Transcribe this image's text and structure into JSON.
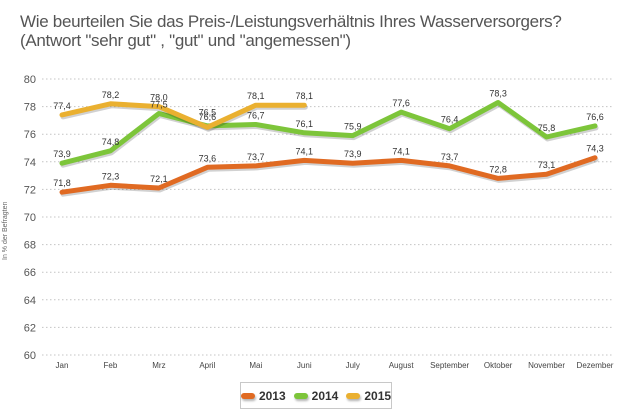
{
  "chart_data": {
    "type": "line",
    "title": "Wie beurteilen Sie das Preis-/Leistungsverhältnis Ihres Wasserversorgers?",
    "subtitle": "(Antwort \"sehr gut\" , \"gut\" und \"angemessen\")",
    "xlabel": "",
    "ylabel": "In % der Befragten",
    "ylim": [
      60,
      80
    ],
    "yticks": [
      60,
      62,
      64,
      66,
      68,
      70,
      72,
      74,
      76,
      78,
      80
    ],
    "grid": true,
    "legend_position": "bottom-center",
    "categories": [
      "Jan",
      "Feb",
      "Mrz",
      "April",
      "Mai",
      "Juni",
      "July",
      "August",
      "September",
      "Oktober",
      "November",
      "Dezember"
    ],
    "series": [
      {
        "name": "2013",
        "color": "#e06a22",
        "values": [
          71.8,
          72.3,
          72.1,
          73.6,
          73.7,
          74.1,
          73.9,
          74.1,
          73.7,
          72.8,
          73.1,
          74.3
        ],
        "labels": [
          "71,8",
          "72,3",
          "72,1",
          "73,6",
          "73,7",
          "74,1",
          "73,9",
          "74,1",
          "73,7",
          "72,8",
          "73,1",
          "74,3"
        ]
      },
      {
        "name": "2014",
        "color": "#7dc53a",
        "values": [
          73.9,
          74.8,
          77.5,
          76.6,
          76.7,
          76.1,
          75.9,
          77.6,
          76.4,
          78.3,
          75.8,
          76.6
        ],
        "labels": [
          "73,9",
          "74,8",
          "77,5",
          "76,6",
          "76,7",
          "76,1",
          "75,9",
          "77,6",
          "76,4",
          "78,3",
          "75,8",
          "76,6"
        ]
      },
      {
        "name": "2015",
        "color": "#eab030",
        "values": [
          77.4,
          78.2,
          78.0,
          76.5,
          78.1,
          78.1
        ],
        "labels": [
          "77,4",
          "78,2",
          "78,0",
          "76,5",
          "78,1",
          "78,1"
        ]
      }
    ]
  }
}
